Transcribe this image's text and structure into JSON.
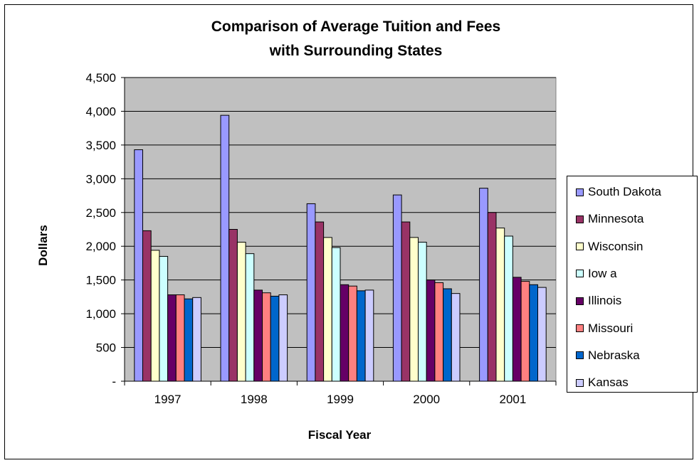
{
  "chart_data": {
    "type": "bar",
    "title": [
      "Comparison of Average Tuition and Fees",
      "with Surrounding States"
    ],
    "xlabel": "Fiscal Year",
    "ylabel": "Dollars",
    "categories": [
      "1997",
      "1998",
      "1999",
      "2000",
      "2001"
    ],
    "ylim": [
      0,
      4500
    ],
    "yticks": [
      0,
      500,
      1000,
      1500,
      2000,
      2500,
      3000,
      3500,
      4000,
      4500
    ],
    "ytick_labels": [
      "-",
      "500",
      "1,000",
      "1,500",
      "2,000",
      "2,500",
      "3,000",
      "3,500",
      "4,000",
      "4,500"
    ],
    "grid": true,
    "legend_position": "right",
    "plot_background": "#c0c0c0",
    "series": [
      {
        "name": "South Dakota",
        "color": "#9999ff",
        "values": [
          3430,
          3940,
          2630,
          2760,
          2860
        ]
      },
      {
        "name": "Minnesota",
        "color": "#993366",
        "values": [
          2230,
          2250,
          2360,
          2360,
          2500
        ]
      },
      {
        "name": "Wisconsin",
        "color": "#ffffcc",
        "values": [
          1940,
          2060,
          2130,
          2130,
          2270
        ]
      },
      {
        "name": "Iow a",
        "color": "#ccffff",
        "values": [
          1850,
          1890,
          1980,
          2060,
          2150
        ]
      },
      {
        "name": "Illinois",
        "color": "#660066",
        "values": [
          1280,
          1350,
          1430,
          1500,
          1540
        ]
      },
      {
        "name": "Missouri",
        "color": "#ff8080",
        "values": [
          1280,
          1310,
          1410,
          1460,
          1480
        ]
      },
      {
        "name": "Nebraska",
        "color": "#0066cc",
        "values": [
          1220,
          1260,
          1340,
          1370,
          1430
        ]
      },
      {
        "name": "Kansas",
        "color": "#ccccff",
        "values": [
          1240,
          1280,
          1350,
          1300,
          1390
        ]
      }
    ]
  }
}
